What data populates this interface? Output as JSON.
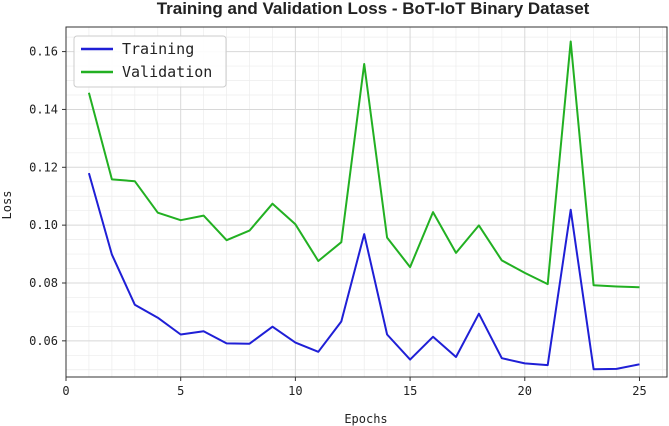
{
  "chart_data": {
    "type": "line",
    "title": "Training and Validation Loss - BoT-IoT Binary Dataset",
    "xlabel": "Epochs",
    "ylabel": "Loss",
    "xlim": [
      0,
      26.2
    ],
    "ylim": [
      0.0475,
      0.1685
    ],
    "x_ticks": [
      0,
      5,
      10,
      15,
      20,
      25
    ],
    "y_ticks": [
      0.06,
      0.08,
      0.1,
      0.12,
      0.14,
      0.16
    ],
    "y_tick_labels": [
      "0.06",
      "0.08",
      "0.10",
      "0.12",
      "0.14",
      "0.16"
    ],
    "grid": true,
    "minor_grid": true,
    "legend_position": "top-left",
    "x": [
      1,
      2,
      3,
      4,
      5,
      6,
      7,
      8,
      9,
      10,
      11,
      12,
      13,
      14,
      15,
      16,
      17,
      18,
      19,
      20,
      21,
      22,
      23,
      24,
      25
    ],
    "series": [
      {
        "name": "Training",
        "color": "#1f1fd6",
        "values": [
          0.118,
          0.0898,
          0.0725,
          0.068,
          0.0622,
          0.0633,
          0.0591,
          0.059,
          0.0649,
          0.0594,
          0.0562,
          0.0667,
          0.0969,
          0.0622,
          0.0535,
          0.0614,
          0.0544,
          0.0694,
          0.054,
          0.0522,
          0.0516,
          0.1053,
          0.0502,
          0.0503,
          0.0519
        ]
      },
      {
        "name": "Validation",
        "color": "#22b022",
        "values": [
          0.1458,
          0.1158,
          0.1152,
          0.1043,
          0.1017,
          0.1033,
          0.0948,
          0.0981,
          0.1074,
          0.1003,
          0.0876,
          0.0941,
          0.1557,
          0.0957,
          0.0855,
          0.1045,
          0.0904,
          0.0999,
          0.0878,
          0.0835,
          0.0796,
          0.1635,
          0.0792,
          0.0788,
          0.0785
        ]
      }
    ]
  }
}
